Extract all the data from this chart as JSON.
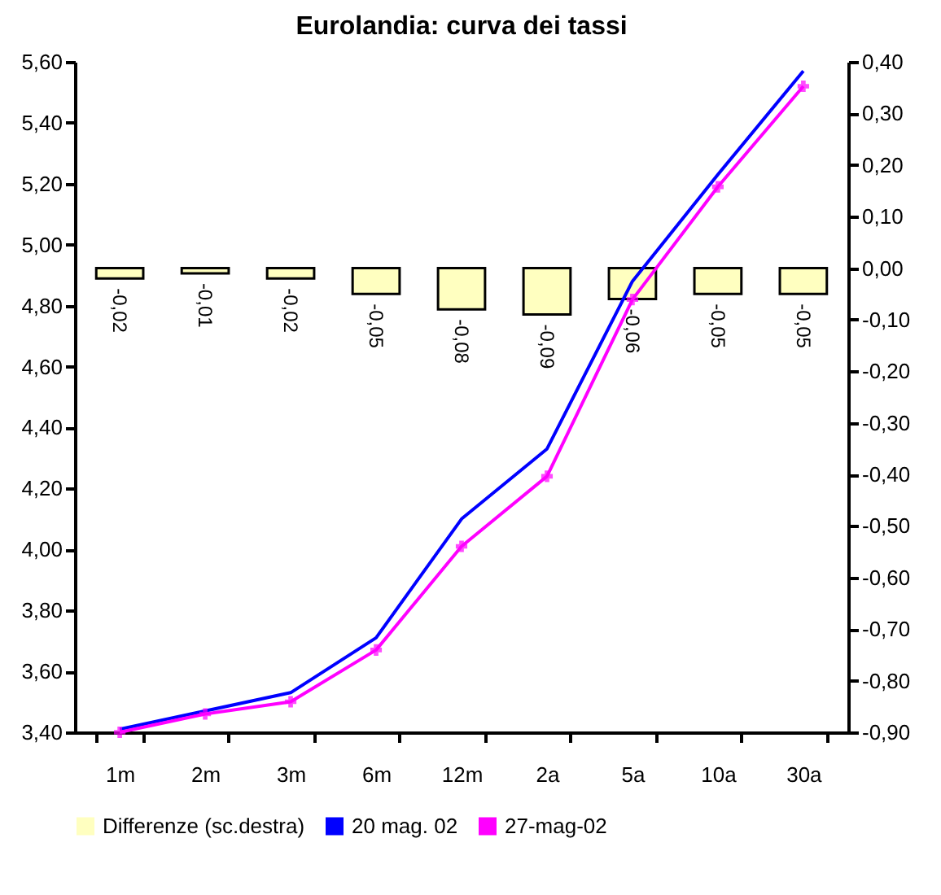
{
  "chart_data": {
    "type": "line",
    "title": "Eurolandia: curva dei tassi",
    "categories": [
      "1m",
      "2m",
      "3m",
      "6m",
      "12m",
      "2a",
      "5a",
      "10a",
      "30a"
    ],
    "series": [
      {
        "name": "Differenze (sc.destra)",
        "type": "bar",
        "axis": "y2",
        "color": "#ffffc0",
        "values": [
          -0.02,
          -0.01,
          -0.02,
          -0.05,
          -0.08,
          -0.09,
          -0.06,
          -0.05,
          -0.05
        ],
        "value_labels": [
          "-0,02",
          "-0,01",
          "-0,02",
          "-0,05",
          "-0,08",
          "-0,09",
          "-0,06",
          "-0,05",
          "-0,05"
        ]
      },
      {
        "name": "20 mag. 02",
        "color": "#0000ff",
        "values": [
          3.41,
          3.47,
          3.53,
          3.71,
          4.1,
          4.33,
          4.88,
          5.23,
          5.57
        ]
      },
      {
        "name": "27-mag-02",
        "color": "#ff00ff",
        "marker": "cross",
        "values": [
          3.4,
          3.46,
          3.5,
          3.67,
          4.01,
          4.24,
          4.82,
          5.19,
          5.52
        ]
      }
    ],
    "ylim": [
      3.4,
      5.6
    ],
    "yticks": [
      {
        "value": 3.4,
        "label": "3,40"
      },
      {
        "value": 3.6,
        "label": "3,60"
      },
      {
        "value": 3.8,
        "label": "3,80"
      },
      {
        "value": 4.0,
        "label": "4,00"
      },
      {
        "value": 4.2,
        "label": "4,20"
      },
      {
        "value": 4.4,
        "label": "4,40"
      },
      {
        "value": 4.6,
        "label": "4,60"
      },
      {
        "value": 4.8,
        "label": "4,80"
      },
      {
        "value": 5.0,
        "label": "5,00"
      },
      {
        "value": 5.2,
        "label": "5,20"
      },
      {
        "value": 5.4,
        "label": "5,40"
      },
      {
        "value": 5.6,
        "label": "5,60"
      }
    ],
    "y2lim": [
      -0.9,
      0.4
    ],
    "y2ticks": [
      {
        "value": -0.9,
        "label": "-0,90"
      },
      {
        "value": -0.8,
        "label": "-0,80"
      },
      {
        "value": -0.7,
        "label": "-0,70"
      },
      {
        "value": -0.6,
        "label": "-0,60"
      },
      {
        "value": -0.5,
        "label": "-0,50"
      },
      {
        "value": -0.4,
        "label": "-0,40"
      },
      {
        "value": -0.3,
        "label": "-0,30"
      },
      {
        "value": -0.2,
        "label": "-0,20"
      },
      {
        "value": -0.1,
        "label": "-0,10"
      },
      {
        "value": 0,
        "label": "0,00"
      },
      {
        "value": 0.1,
        "label": "0,10"
      },
      {
        "value": 0.2,
        "label": "0,20"
      },
      {
        "value": 0.3,
        "label": "0,30"
      },
      {
        "value": 0.4,
        "label": "0,40"
      }
    ],
    "grid": false,
    "legend": "bottom"
  }
}
